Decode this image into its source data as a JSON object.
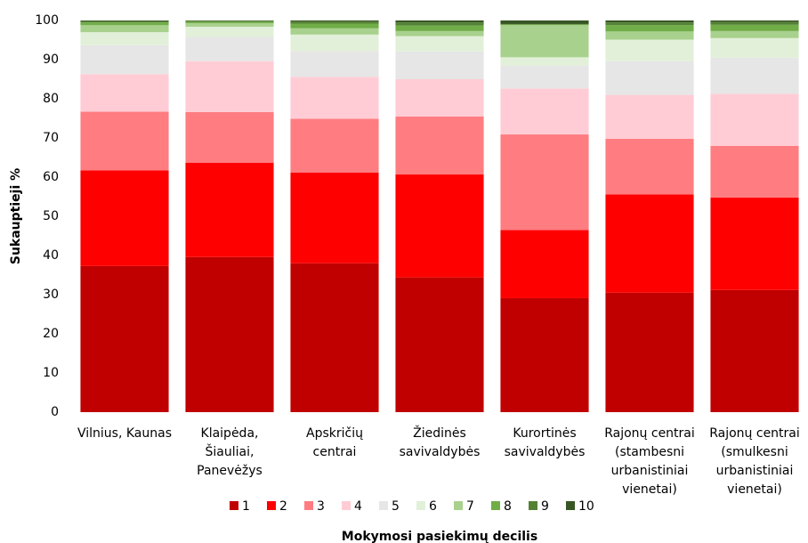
{
  "chart_data": {
    "type": "stacked_bar",
    "y_label": "Sukauptieji %",
    "x_label": "Mokymosi pasiekimų decilis",
    "categories": [
      [
        "Vilnius, Kaunas"
      ],
      [
        "Klaipėda,",
        "Šiauliai,",
        "Panevėžys"
      ],
      [
        "Apskričių",
        "centrai"
      ],
      [
        "Žiedinės",
        "savivaldybės"
      ],
      [
        "Kurortinės",
        "savivaldybės"
      ],
      [
        "Rajonų centrai",
        "(stambesni",
        "urbanistiniai",
        "vienetai)"
      ],
      [
        "Rajonų centrai",
        "(smulkesni",
        "urbanistiniai",
        "vienetai)"
      ]
    ],
    "series": [
      {
        "name": "1",
        "color": "#c00000",
        "values": [
          37.3,
          39.6,
          38.0,
          34.4,
          29.1,
          30.5,
          31.2
        ]
      },
      {
        "name": "2",
        "color": "#ff0000",
        "values": [
          24.4,
          24.1,
          23.2,
          26.3,
          17.4,
          25.1,
          23.6
        ]
      },
      {
        "name": "3",
        "color": "#ff7c80",
        "values": [
          15.0,
          12.9,
          13.7,
          14.8,
          24.4,
          14.2,
          13.2
        ]
      },
      {
        "name": "4",
        "color": "#ffccd5",
        "values": [
          9.6,
          13.0,
          10.7,
          9.5,
          11.7,
          11.2,
          13.3
        ]
      },
      {
        "name": "5",
        "color": "#e6e6e6",
        "values": [
          7.4,
          6.2,
          6.6,
          7.1,
          5.9,
          8.6,
          9.2
        ]
      },
      {
        "name": "6",
        "color": "#e2f0d9",
        "values": [
          3.3,
          2.6,
          4.2,
          3.9,
          2.1,
          5.5,
          5.0
        ]
      },
      {
        "name": "7",
        "color": "#a9d18e",
        "values": [
          1.8,
          0.9,
          1.6,
          1.3,
          8.2,
          2.1,
          1.8
        ]
      },
      {
        "name": "8",
        "color": "#70ad47",
        "values": [
          0.7,
          0.4,
          1.2,
          1.4,
          0.2,
          1.6,
          1.6
        ]
      },
      {
        "name": "9",
        "color": "#548235",
        "values": [
          0.3,
          0.2,
          0.5,
          0.8,
          0.1,
          0.7,
          0.7
        ]
      },
      {
        "name": "10",
        "color": "#375623",
        "values": [
          0.2,
          0.1,
          0.3,
          0.5,
          0.9,
          0.5,
          0.4
        ]
      }
    ],
    "ylim": [
      0,
      100
    ],
    "yticks": [
      0,
      10,
      20,
      30,
      40,
      50,
      60,
      70,
      80,
      90,
      100
    ],
    "grid": false,
    "legend": "bottom"
  }
}
